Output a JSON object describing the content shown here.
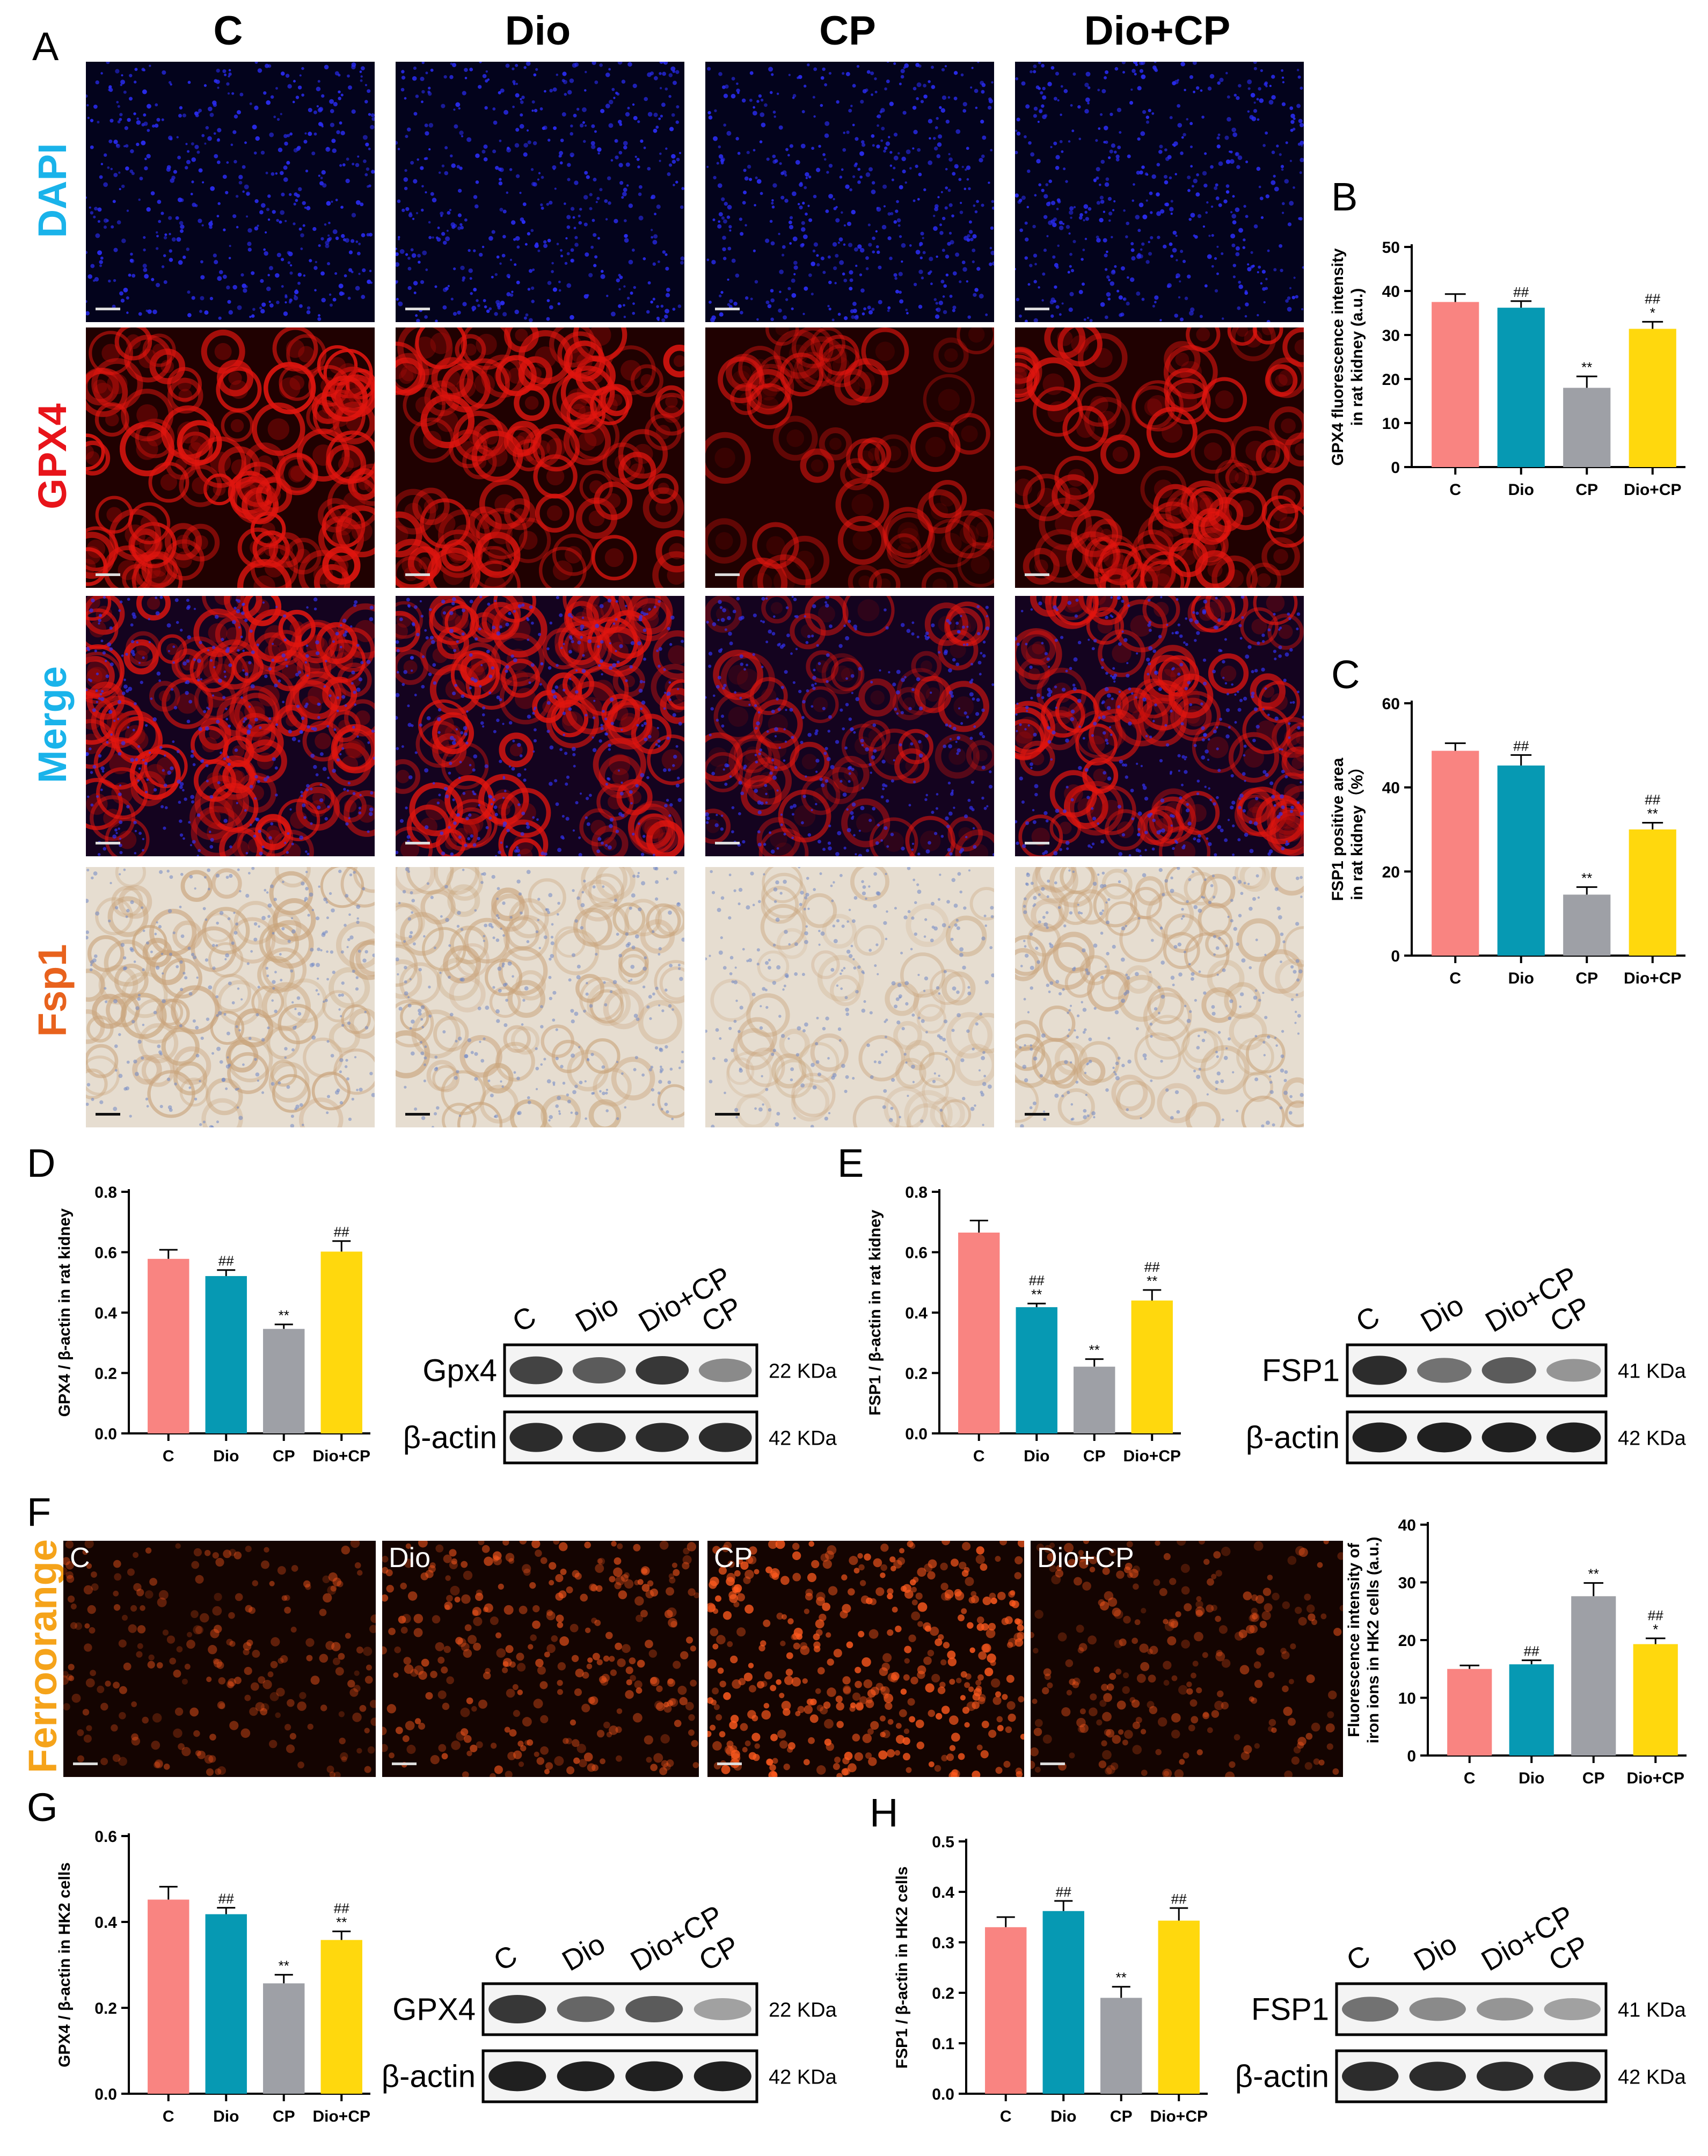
{
  "panels": {
    "A": "A",
    "B": "B",
    "C": "C",
    "D": "D",
    "E": "E",
    "F": "F",
    "G": "G",
    "H": "H"
  },
  "groups": [
    "C",
    "Dio",
    "CP",
    "Dio+CP"
  ],
  "panel_A": {
    "rows": [
      {
        "label": "DAPI",
        "color": "#1ab3ea",
        "type": "dapi"
      },
      {
        "label": "GPX4",
        "color": "#e8141a",
        "type": "gpx4"
      },
      {
        "label": "Merge",
        "color": "#1ab3ea",
        "type": "merge"
      },
      {
        "label": "Fsp1",
        "color": "#e8621d",
        "type": "fsp1"
      }
    ]
  },
  "panel_F": {
    "row_label": "Ferroorange",
    "row_label_color": "#f5a31a",
    "tile_labels": [
      "C",
      "Dio",
      "CP",
      "Dio+CP"
    ]
  },
  "colors": {
    "C": "#f98481",
    "Dio": "#0699b3",
    "CP": "#9ea0a6",
    "Dio+CP": "#ffd80d"
  },
  "chart_data": [
    {
      "id": "B",
      "type": "bar",
      "categories": [
        "C",
        "Dio",
        "CP",
        "Dio+CP"
      ],
      "values": [
        37.5,
        36.2,
        18.0,
        31.4
      ],
      "errors": [
        1.8,
        1.5,
        2.6,
        1.6
      ],
      "annotations": [
        [
          "",
          ""
        ],
        [
          "##",
          ""
        ],
        [
          "**",
          ""
        ],
        [
          "##",
          "*"
        ]
      ],
      "ylabel": "GPX4 fluorescence intensity\nin rat kidney (a.u.)",
      "ylim": [
        0,
        50
      ],
      "yticks": [
        0,
        10,
        20,
        30,
        40,
        50
      ]
    },
    {
      "id": "C",
      "type": "bar",
      "categories": [
        "C",
        "Dio",
        "CP",
        "Dio+CP"
      ],
      "values": [
        48.7,
        45.2,
        14.5,
        30.0
      ],
      "errors": [
        1.8,
        2.5,
        1.8,
        1.6
      ],
      "annotations": [
        [
          "",
          ""
        ],
        [
          "##",
          ""
        ],
        [
          "**",
          ""
        ],
        [
          "##",
          "**"
        ]
      ],
      "ylabel": "FSP1 positive area\nin rat kidney（%）",
      "ylim": [
        0,
        60
      ],
      "yticks": [
        0,
        20,
        40,
        60
      ]
    },
    {
      "id": "D",
      "type": "bar",
      "categories": [
        "C",
        "Dio",
        "CP",
        "Dio+CP"
      ],
      "values": [
        0.578,
        0.521,
        0.346,
        0.602
      ],
      "errors": [
        0.03,
        0.02,
        0.015,
        0.035
      ],
      "annotations": [
        [
          "",
          ""
        ],
        [
          "##",
          ""
        ],
        [
          "**",
          ""
        ],
        [
          "##",
          ""
        ]
      ],
      "ylabel": "GPX4 / β-actin in rat kidney",
      "ylim": [
        0,
        0.8
      ],
      "yticks": [
        0.0,
        0.2,
        0.4,
        0.6,
        0.8
      ]
    },
    {
      "id": "E",
      "type": "bar",
      "categories": [
        "C",
        "Dio",
        "CP",
        "Dio+CP"
      ],
      "values": [
        0.665,
        0.418,
        0.221,
        0.44
      ],
      "errors": [
        0.04,
        0.012,
        0.025,
        0.035
      ],
      "annotations": [
        [
          "",
          ""
        ],
        [
          "##",
          "**"
        ],
        [
          "**",
          ""
        ],
        [
          "##",
          "**"
        ]
      ],
      "ylabel": "FSP1 / β-actin in rat kidney",
      "ylim": [
        0,
        0.8
      ],
      "yticks": [
        0.0,
        0.2,
        0.4,
        0.6,
        0.8
      ]
    },
    {
      "id": "F",
      "type": "bar",
      "categories": [
        "C",
        "Dio",
        "CP",
        "Dio+CP"
      ],
      "values": [
        15.0,
        15.8,
        27.6,
        19.3
      ],
      "errors": [
        0.6,
        0.7,
        2.3,
        1.0
      ],
      "annotations": [
        [
          "",
          ""
        ],
        [
          "##",
          ""
        ],
        [
          "**",
          ""
        ],
        [
          "##",
          "*"
        ]
      ],
      "ylabel": "Fluorescence intensity of\niron ions in HK2 cells (a.u.)",
      "ylim": [
        0,
        40
      ],
      "yticks": [
        0,
        10,
        20,
        30,
        40
      ]
    },
    {
      "id": "G",
      "type": "bar",
      "categories": [
        "C",
        "Dio",
        "CP",
        "Dio+CP"
      ],
      "values": [
        0.452,
        0.418,
        0.257,
        0.358
      ],
      "errors": [
        0.03,
        0.015,
        0.02,
        0.02
      ],
      "annotations": [
        [
          "",
          ""
        ],
        [
          "##",
          ""
        ],
        [
          "**",
          ""
        ],
        [
          "##",
          "**"
        ]
      ],
      "ylabel": "GPX4 / β-actin in HK2 cells",
      "ylim": [
        0,
        0.6
      ],
      "yticks": [
        0.0,
        0.2,
        0.4,
        0.6
      ]
    },
    {
      "id": "H",
      "type": "bar",
      "categories": [
        "C",
        "Dio",
        "CP",
        "Dio+CP"
      ],
      "values": [
        0.33,
        0.362,
        0.19,
        0.343
      ],
      "errors": [
        0.02,
        0.02,
        0.022,
        0.025
      ],
      "annotations": [
        [
          "",
          ""
        ],
        [
          "##",
          ""
        ],
        [
          "**",
          ""
        ],
        [
          "##",
          ""
        ]
      ],
      "ylabel": "FSP1 / β-actin in HK2 cells",
      "ylim": [
        0,
        0.5
      ],
      "yticks": [
        0.0,
        0.1,
        0.2,
        0.3,
        0.4,
        0.5
      ]
    }
  ],
  "blots": [
    {
      "id": "D",
      "lanes": [
        "C",
        "Dio",
        "Dio+CP",
        "CP"
      ],
      "rows": [
        {
          "name": "Gpx4",
          "kda": "22 KDa",
          "intensity": [
            0.8,
            0.7,
            0.85,
            0.5
          ]
        },
        {
          "name": "β-actin",
          "kda": "42 KDa",
          "intensity": [
            0.9,
            0.9,
            0.9,
            0.9
          ]
        }
      ]
    },
    {
      "id": "E",
      "lanes": [
        "C",
        "Dio",
        "Dio+CP",
        "CP"
      ],
      "rows": [
        {
          "name": "FSP1",
          "kda": "41 KDa",
          "intensity": [
            0.9,
            0.6,
            0.7,
            0.45
          ]
        },
        {
          "name": "β-actin",
          "kda": "42 KDa",
          "intensity": [
            0.95,
            0.95,
            0.95,
            0.95
          ]
        }
      ]
    },
    {
      "id": "G",
      "lanes": [
        "C",
        "Dio",
        "Dio+CP",
        "CP"
      ],
      "rows": [
        {
          "name": "GPX4",
          "kda": "22 KDa",
          "intensity": [
            0.85,
            0.65,
            0.7,
            0.4
          ]
        },
        {
          "name": "β-actin",
          "kda": "42 KDa",
          "intensity": [
            0.95,
            0.95,
            0.95,
            0.95
          ]
        }
      ]
    },
    {
      "id": "H",
      "lanes": [
        "C",
        "Dio",
        "Dio+CP",
        "CP"
      ],
      "rows": [
        {
          "name": "FSP1",
          "kda": "41 KDa",
          "intensity": [
            0.6,
            0.5,
            0.45,
            0.4
          ]
        },
        {
          "name": "β-actin",
          "kda": "42 KDa",
          "intensity": [
            0.9,
            0.9,
            0.9,
            0.9
          ]
        }
      ]
    }
  ]
}
